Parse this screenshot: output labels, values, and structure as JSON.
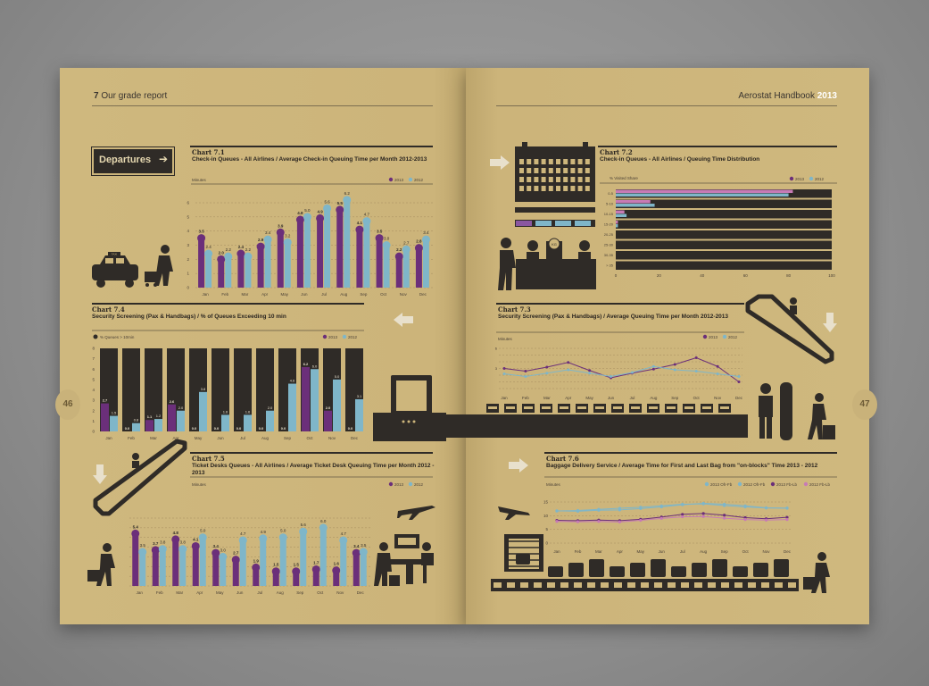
{
  "spread": {
    "left_header_num": "7",
    "left_header_text": "Our grade report",
    "right_header_text": "Aerostat Handbook",
    "right_header_year": "2013",
    "page_left": "46",
    "page_right": "47",
    "departures_label": "Departures",
    "taxi_label": "TAXI",
    "desk_label": "KG"
  },
  "colors": {
    "purple": "#6b2f7a",
    "blue": "#7fb6c9",
    "dark": "#2f2b27",
    "paper": "#cdb67c",
    "pink": "#c77bb5"
  },
  "chart_data": [
    {
      "id": "7.1",
      "type": "bar",
      "label": "Chart 7.1",
      "title": "Check-in Queues - All Airlines / Average Check-in Queuing Time per Month 2012-2013",
      "unit_label": "Minutes",
      "categories": [
        "Jan",
        "Feb",
        "Mar",
        "Apr",
        "May",
        "Jun",
        "Jul",
        "Aug",
        "Sep",
        "Oct",
        "Nov",
        "Dec"
      ],
      "series": [
        {
          "name": "2013",
          "values": [
            3.5,
            2.0,
            2.4,
            2.9,
            3.9,
            4.8,
            4.9,
            5.5,
            4.1,
            3.5,
            2.2,
            2.8
          ]
        },
        {
          "name": "2012",
          "values": [
            2.4,
            2.2,
            2.2,
            3.4,
            3.2,
            5.0,
            5.6,
            6.2,
            4.7,
            3.0,
            2.7,
            3.4
          ]
        }
      ],
      "ylim": [
        0,
        6
      ],
      "yticks": [
        0,
        1,
        2,
        3,
        4,
        5,
        6
      ]
    },
    {
      "id": "7.2",
      "type": "bar",
      "label": "Chart 7.2",
      "title": "Check-in Queues - All Airlines / Queuing Time Distribution",
      "unit_label": "% Visited Share",
      "categories": [
        "0-5",
        "5-10",
        "10-15",
        "15-20",
        "20-25",
        "25-30",
        "30-35",
        "> 35"
      ],
      "series": [
        {
          "name": "2013",
          "values": [
            82,
            16,
            4,
            1,
            0,
            0,
            0,
            0
          ]
        },
        {
          "name": "2012",
          "values": [
            80,
            18,
            5,
            1,
            0,
            0,
            0,
            0
          ]
        }
      ],
      "xlim": [
        0,
        100
      ],
      "xticks": [
        0,
        20,
        40,
        60,
        80,
        100
      ]
    },
    {
      "id": "7.3",
      "type": "line",
      "label": "Chart 7.3",
      "title": "Security Screening (Pax & Handbags) / Average Queuing Time per Month 2012-2013",
      "unit_label": "Minutes",
      "categories": [
        "Jan",
        "Feb",
        "Mar",
        "Apr",
        "May",
        "Jun",
        "Jul",
        "Aug",
        "Sep",
        "Oct",
        "Nov",
        "Dec"
      ],
      "series": [
        {
          "name": "2013",
          "values": [
            3.0,
            2.6,
            3.2,
            3.9,
            2.7,
            1.6,
            2.3,
            2.9,
            3.6,
            4.6,
            3.3,
            1.0
          ]
        },
        {
          "name": "2012",
          "values": [
            2.2,
            1.8,
            2.3,
            2.8,
            2.3,
            1.8,
            2.4,
            3.3,
            2.8,
            2.6,
            2.2,
            1.8
          ]
        }
      ],
      "ylim": [
        0,
        6
      ]
    },
    {
      "id": "7.4",
      "type": "bar",
      "label": "Chart 7.4",
      "title": "Security Screening (Pax & Handbags) / % of Queues Exceeding 10 min",
      "unit_label": "% Queues > 10min",
      "categories": [
        "Jan",
        "Feb",
        "Mar",
        "Apr",
        "May",
        "Jun",
        "Jul",
        "Aug",
        "Sep",
        "Oct",
        "Nov",
        "Dec"
      ],
      "series": [
        {
          "name": "2013",
          "values": [
            2.7,
            0.0,
            1.1,
            2.6,
            0.0,
            0.0,
            0.0,
            0.0,
            0.0,
            6.2,
            2.0,
            0.0
          ]
        },
        {
          "name": "2012",
          "values": [
            1.5,
            0.8,
            1.2,
            2.0,
            3.8,
            1.6,
            1.6,
            2.0,
            4.6,
            6.0,
            5.0,
            3.1
          ]
        }
      ],
      "ylim": [
        0,
        8
      ],
      "yticks": [
        0,
        1,
        2,
        3,
        4,
        5,
        6,
        7,
        8
      ]
    },
    {
      "id": "7.5",
      "type": "bar",
      "label": "Chart 7.5",
      "title": "Ticket Desks Queues - All Airlines / Average Ticket Desk Queuing Time per Month 2012 - 2013",
      "unit_label": "Minutes",
      "categories": [
        "Jan",
        "Feb",
        "Mar",
        "Apr",
        "May",
        "Jun",
        "Jul",
        "Aug",
        "Sep",
        "Oct",
        "Nov",
        "Dec"
      ],
      "series": [
        {
          "name": "2013",
          "values": [
            5.4,
            3.7,
            4.8,
            4.1,
            3.4,
            2.7,
            1.9,
            1.5,
            1.5,
            1.7,
            1.6,
            3.4
          ]
        },
        {
          "name": "2012",
          "values": [
            3.5,
            3.8,
            3.8,
            5.0,
            3.0,
            4.7,
            4.9,
            5.0,
            5.6,
            6.0,
            4.7,
            3.5
          ]
        }
      ],
      "ylim": [
        0,
        7
      ]
    },
    {
      "id": "7.6",
      "type": "line",
      "label": "Chart 7.6",
      "title": "Baggage Delivery Service / Average Time for First and Last Bag from \"on-blocks\" Time 2013 - 2012",
      "unit_label": "Minutes",
      "categories": [
        "Jan",
        "Feb",
        "Mar",
        "Apr",
        "May",
        "Jun",
        "Jul",
        "Aug",
        "Sep",
        "Oct",
        "Nov",
        "Dec"
      ],
      "series": [
        {
          "name": "2013 Ofr-Fb",
          "values": [
            11.8,
            11.6,
            12.0,
            12.1,
            12.6,
            13.2,
            14.0,
            14.5,
            14.2,
            13.6,
            12.9,
            12.7
          ]
        },
        {
          "name": "2012 Ofr-Fb",
          "values": [
            11.7,
            11.9,
            12.3,
            12.7,
            13.1,
            13.6,
            14.2,
            14.3,
            13.7,
            13.2,
            12.8,
            12.8
          ]
        },
        {
          "name": "2013 Fb-Lb",
          "values": [
            8.3,
            8.2,
            8.4,
            8.2,
            8.7,
            9.5,
            10.5,
            10.8,
            10.2,
            9.3,
            8.9,
            9.4
          ]
        },
        {
          "name": "2012 Fb-Lb",
          "values": [
            7.9,
            7.8,
            7.9,
            7.7,
            8.3,
            9.0,
            9.6,
            9.7,
            9.1,
            8.6,
            8.4,
            8.6
          ]
        }
      ],
      "ylim": [
        0,
        15
      ],
      "yticks": [
        0,
        5,
        10,
        15
      ]
    }
  ]
}
